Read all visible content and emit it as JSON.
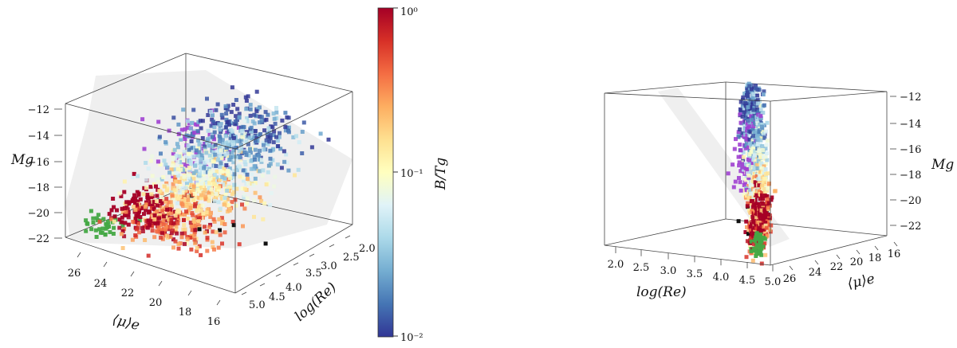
{
  "chart_data": [
    {
      "type": "scatter",
      "view": "oblique",
      "axes": {
        "x": {
          "label": "⟨μ⟩e",
          "ticks": [
            "26",
            "24",
            "22",
            "20",
            "18",
            "16"
          ]
        },
        "y": {
          "label": "log(Re)",
          "ticks": [
            "2.0",
            "2.5",
            "3.0",
            "3.5",
            "4.0",
            "4.5",
            "5.0"
          ]
        },
        "z": {
          "label": "Mg",
          "ticks": [
            "−12",
            "−14",
            "−16",
            "−18",
            "−20",
            "−22"
          ]
        }
      },
      "plane": "grey shaded fitted plane through the cloud",
      "clusters": [
        {
          "color_group": "low B/T (blue)",
          "mu_e": [
            18,
            22
          ],
          "log_re": [
            2.2,
            3.3
          ],
          "Mg": [
            -13,
            -16
          ]
        },
        {
          "color_group": "intermediate B/T (pale yellow/orange)",
          "mu_e": [
            18,
            22
          ],
          "log_re": [
            3.0,
            4.3
          ],
          "Mg": [
            -16,
            -19
          ]
        },
        {
          "color_group": "high B/T (red)",
          "mu_e": [
            20,
            25
          ],
          "log_re": [
            3.5,
            5.0
          ],
          "Mg": [
            -18,
            -22
          ]
        },
        {
          "color_group": "purple",
          "mu_e": [
            22,
            25
          ],
          "log_re": [
            2.5,
            3.5
          ],
          "Mg": [
            -14,
            -18
          ]
        },
        {
          "color_group": "green",
          "mu_e": [
            24,
            27
          ],
          "log_re": [
            4.3,
            5.0
          ],
          "Mg": [
            -20,
            -23
          ]
        }
      ]
    },
    {
      "type": "scatter",
      "view": "edge-on",
      "axes": {
        "x": {
          "label": "log(Re)",
          "ticks": [
            "2.0",
            "2.5",
            "3.0",
            "3.5",
            "4.0",
            "4.5",
            "5.0"
          ]
        },
        "y": {
          "label": "⟨μ⟩e",
          "ticks": [
            "26",
            "24",
            "22",
            "20",
            "18",
            "16"
          ]
        },
        "z": {
          "label": "Mg",
          "ticks": [
            "−12",
            "−14",
            "−16",
            "−18",
            "−20",
            "−22"
          ]
        }
      },
      "plane": "grey shaded fitted plane seen edge-on"
    }
  ],
  "colorbar": {
    "label": "B/Tg",
    "scale": "log",
    "range": [
      0.01,
      1
    ],
    "ticks": [
      "10⁰",
      "10⁻¹",
      "10⁻²"
    ],
    "colors": [
      "#313695",
      "#4575b4",
      "#74add1",
      "#abd9e9",
      "#e0f3f8",
      "#ffffbf",
      "#fee090",
      "#fdae61",
      "#f46d43",
      "#d73027",
      "#a50026"
    ]
  }
}
